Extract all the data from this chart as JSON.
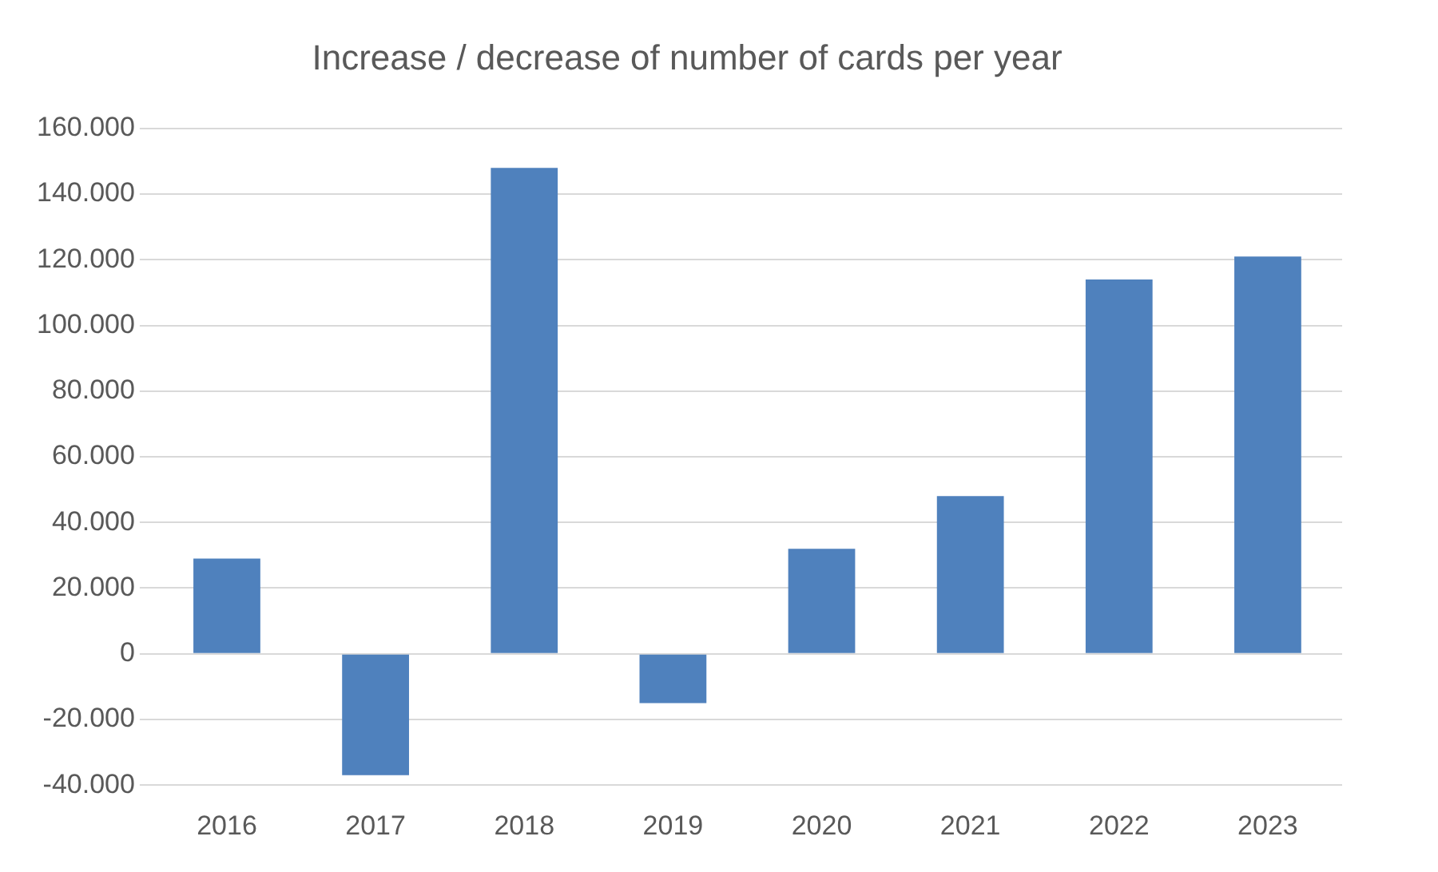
{
  "chart_data": {
    "type": "bar",
    "title": "Increase / decrease of number of cards per year",
    "categories": [
      "2016",
      "2017",
      "2018",
      "2019",
      "2020",
      "2021",
      "2022",
      "2023"
    ],
    "values": [
      29000,
      -37000,
      148000,
      -15000,
      32000,
      48000,
      114000,
      121000
    ],
    "color": "#4f81bd",
    "ylim": [
      -40000,
      160000
    ],
    "yticks": [
      {
        "value": -40000,
        "label": "-40.000"
      },
      {
        "value": -20000,
        "label": "-20.000"
      },
      {
        "value": 0,
        "label": "0"
      },
      {
        "value": 20000,
        "label": "20.000"
      },
      {
        "value": 40000,
        "label": "40.000"
      },
      {
        "value": 60000,
        "label": "60.000"
      },
      {
        "value": 80000,
        "label": "80.000"
      },
      {
        "value": 100000,
        "label": "100.000"
      },
      {
        "value": 120000,
        "label": "120.000"
      },
      {
        "value": 140000,
        "label": "140.000"
      },
      {
        "value": 160000,
        "label": "160.000"
      }
    ],
    "grid": "y"
  }
}
